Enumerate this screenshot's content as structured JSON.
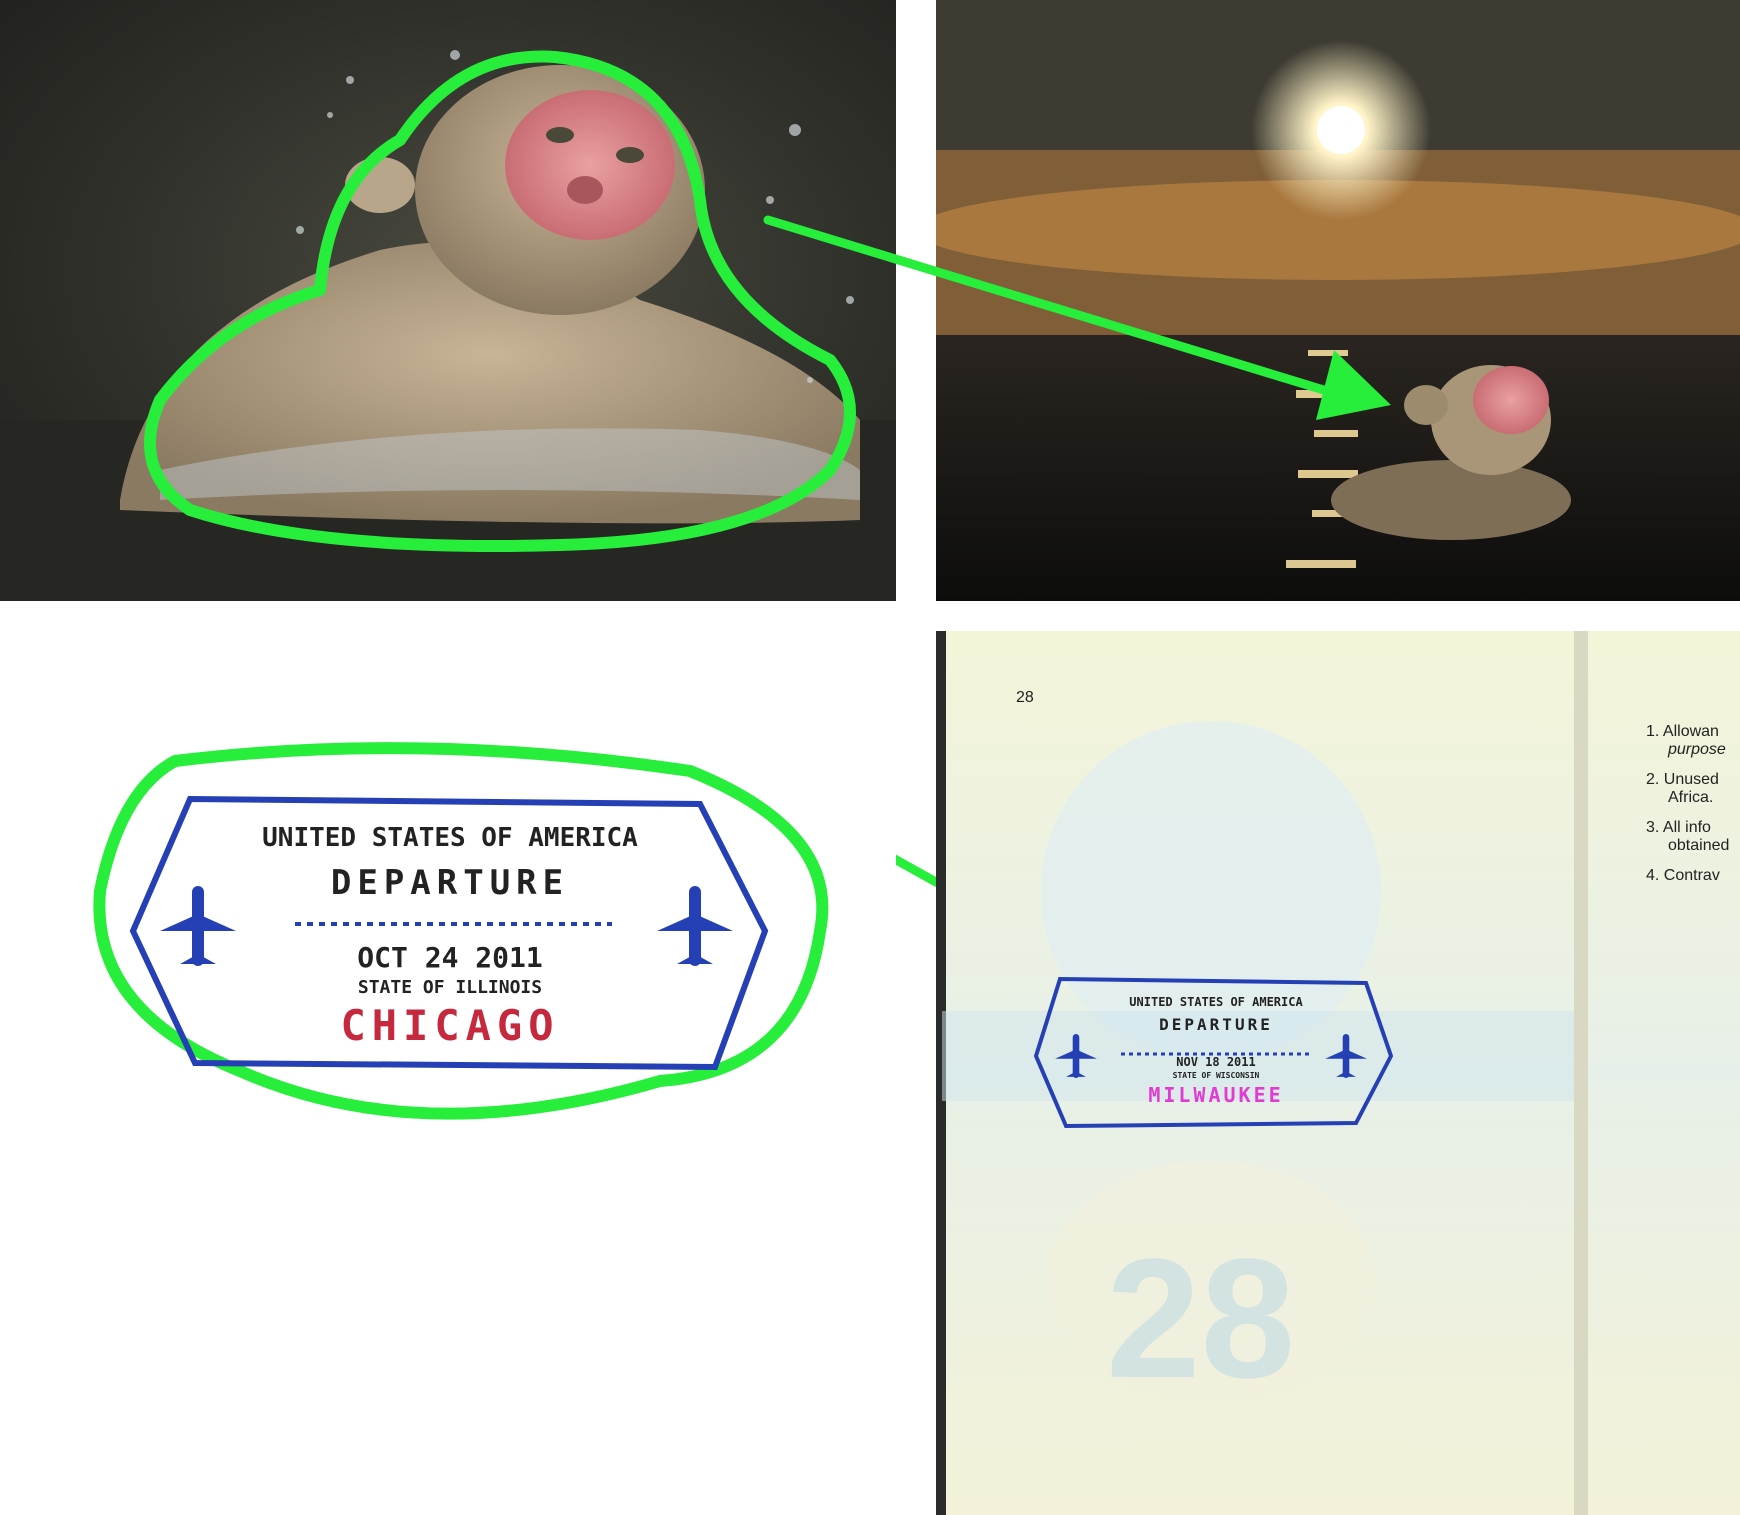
{
  "src_stamp": {
    "country": "UNITED STATES OF AMERICA",
    "type": "DEPARTURE",
    "date": "OCT 24 2011",
    "state": "STATE OF ILLINOIS",
    "city": "CHICAGO"
  },
  "dst_stamp": {
    "country": "UNITED STATES OF AMERICA",
    "type": "DEPARTURE",
    "date": "NOV 18 2011",
    "state": "STATE OF WISCONSIN",
    "city": "MILWAUKEE"
  },
  "passport": {
    "page_number": "28",
    "watermark_number": "28",
    "notes": [
      {
        "num": "1.",
        "line1": "Allowan",
        "line2": "purpose"
      },
      {
        "num": "2.",
        "line1": "Unused",
        "line2": "Africa."
      },
      {
        "num": "3.",
        "line1": "All info",
        "line2": "obtained"
      },
      {
        "num": "4.",
        "line1": "Contrav",
        "line2": ""
      }
    ]
  },
  "colors": {
    "highlight": "#27ee3a",
    "stamp_blue": "#2540b5",
    "stamp_red": "#c6283e",
    "stamp_magenta": "#e23bd2"
  }
}
